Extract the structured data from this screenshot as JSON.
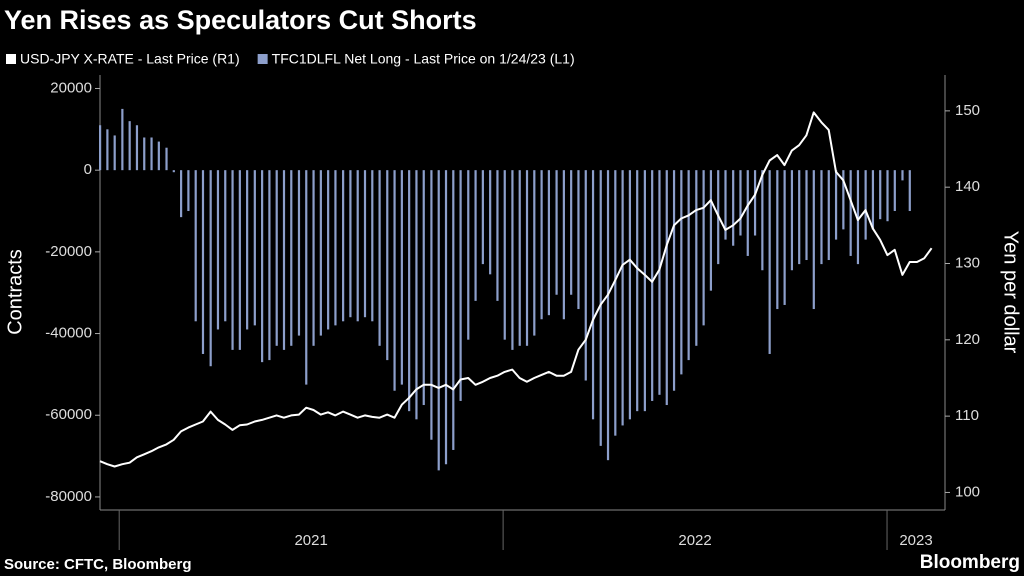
{
  "chart_data": {
    "type": "combo",
    "title": "Yen Rises as Speculators Cut Shorts",
    "ylabel": "Contracts",
    "y2label": "Yen per dollar",
    "source": "Source: CFTC, Bloomberg",
    "brand": "Bloomberg",
    "xlim": [
      2020.95,
      2023.151
    ],
    "xticks": [
      {
        "value": 2021,
        "label": "2021"
      },
      {
        "value": 2022,
        "label": "2022"
      },
      {
        "value": 2023,
        "label": "2023"
      }
    ],
    "ylim": [
      -83200,
      23300
    ],
    "yticks": [
      -80000,
      -60000,
      -40000,
      -20000,
      0,
      20000
    ],
    "y2lim": [
      97.7,
      154.7
    ],
    "y2ticks": [
      100,
      110,
      120,
      130,
      140,
      150
    ],
    "x": [
      2020.95,
      2020.969,
      2020.988,
      2021.008,
      2021.027,
      2021.046,
      2021.065,
      2021.084,
      2021.103,
      2021.123,
      2021.142,
      2021.161,
      2021.18,
      2021.199,
      2021.218,
      2021.238,
      2021.257,
      2021.276,
      2021.295,
      2021.314,
      2021.333,
      2021.353,
      2021.372,
      2021.391,
      2021.41,
      2021.429,
      2021.448,
      2021.468,
      2021.487,
      2021.506,
      2021.525,
      2021.544,
      2021.563,
      2021.583,
      2021.602,
      2021.621,
      2021.64,
      2021.659,
      2021.678,
      2021.698,
      2021.717,
      2021.736,
      2021.755,
      2021.774,
      2021.793,
      2021.813,
      2021.832,
      2021.851,
      2021.87,
      2021.889,
      2021.909,
      2021.928,
      2021.947,
      2021.966,
      2021.985,
      2022.004,
      2022.024,
      2022.043,
      2022.062,
      2022.081,
      2022.1,
      2022.119,
      2022.139,
      2022.158,
      2022.177,
      2022.196,
      2022.215,
      2022.234,
      2022.254,
      2022.273,
      2022.292,
      2022.311,
      2022.33,
      2022.349,
      2022.369,
      2022.388,
      2022.407,
      2022.426,
      2022.445,
      2022.464,
      2022.483,
      2022.503,
      2022.522,
      2022.541,
      2022.56,
      2022.579,
      2022.599,
      2022.618,
      2022.637,
      2022.656,
      2022.675,
      2022.694,
      2022.714,
      2022.733,
      2022.752,
      2022.771,
      2022.79,
      2022.809,
      2022.829,
      2022.848,
      2022.867,
      2022.886,
      2022.905,
      2022.924,
      2022.944,
      2022.963,
      2022.982,
      2023.001,
      2023.02,
      2023.04,
      2023.059,
      2023.078,
      2023.097,
      2023.116
    ],
    "series": [
      {
        "name": "USD-JPY X-RATE - Last Price (R1)",
        "type": "line",
        "axis": "y2",
        "color": "#ffffff",
        "values": [
          104.1,
          103.7,
          103.4,
          103.7,
          103.9,
          104.6,
          105.0,
          105.4,
          105.9,
          106.3,
          106.9,
          108.0,
          108.5,
          108.9,
          109.3,
          110.6,
          109.5,
          108.9,
          108.2,
          108.8,
          108.9,
          109.3,
          109.5,
          109.8,
          110.1,
          109.8,
          110.1,
          110.2,
          111.1,
          110.8,
          110.2,
          110.5,
          110.1,
          110.6,
          110.2,
          109.8,
          110.1,
          109.9,
          109.8,
          110.2,
          109.8,
          111.5,
          112.4,
          113.5,
          114.1,
          114.1,
          113.7,
          114.1,
          113.5,
          114.8,
          115.0,
          114.1,
          114.5,
          115.0,
          115.3,
          115.8,
          116.1,
          115.0,
          114.5,
          115.0,
          115.4,
          115.8,
          115.3,
          115.3,
          115.8,
          118.7,
          120.0,
          122.6,
          124.6,
          125.9,
          127.8,
          129.8,
          130.5,
          129.4,
          128.5,
          127.6,
          129.2,
          132.4,
          135.0,
          135.9,
          136.3,
          137.0,
          137.3,
          138.3,
          136.3,
          134.4,
          135.0,
          135.9,
          137.6,
          139.0,
          141.6,
          143.5,
          144.2,
          142.9,
          144.8,
          145.5,
          146.8,
          149.8,
          148.5,
          147.5,
          142.0,
          140.9,
          138.3,
          135.7,
          137.0,
          134.6,
          133.1,
          131.1,
          131.8,
          128.5,
          130.2,
          130.2,
          130.7,
          132.0
        ]
      },
      {
        "name": "TFC1DLFL Net Long - Last Price on 1/24/23 (L1)",
        "type": "bar",
        "axis": "y",
        "color": "#8d9fcb",
        "values": [
          11000,
          10000,
          8500,
          15000,
          12000,
          11000,
          8000,
          8000,
          7000,
          5500,
          -500,
          -11500,
          -10000,
          -37000,
          -45000,
          -48000,
          -39000,
          -37000,
          -44000,
          -44000,
          -39000,
          -38000,
          -47000,
          -46500,
          -43000,
          -44000,
          -43000,
          -40500,
          -52500,
          -43000,
          -40500,
          -39000,
          -38000,
          -37000,
          -36000,
          -37000,
          -36000,
          -37000,
          -43000,
          -46500,
          -54000,
          -52500,
          -59000,
          -61000,
          -57500,
          -66000,
          -73500,
          -72000,
          -68500,
          -56500,
          -41500,
          -32000,
          -23000,
          -25500,
          -32000,
          -41500,
          -44000,
          -43000,
          -43000,
          -40500,
          -36500,
          -35500,
          -30500,
          -36500,
          -30500,
          -34000,
          -51500,
          -61000,
          -67500,
          -71000,
          -65000,
          -62500,
          -61000,
          -59000,
          -59000,
          -56500,
          -55000,
          -57500,
          -54000,
          -50000,
          -46500,
          -43000,
          -38000,
          -29500,
          -23000,
          -17000,
          -18500,
          -16000,
          -21000,
          -16000,
          -24500,
          -45000,
          -34000,
          -33000,
          -24500,
          -23000,
          -22000,
          -34000,
          -23000,
          -22000,
          -17000,
          -14500,
          -21000,
          -23000,
          -17000,
          -14500,
          -12000,
          -12500,
          -10000,
          -2500,
          -10000,
          null,
          null,
          null
        ]
      }
    ]
  }
}
